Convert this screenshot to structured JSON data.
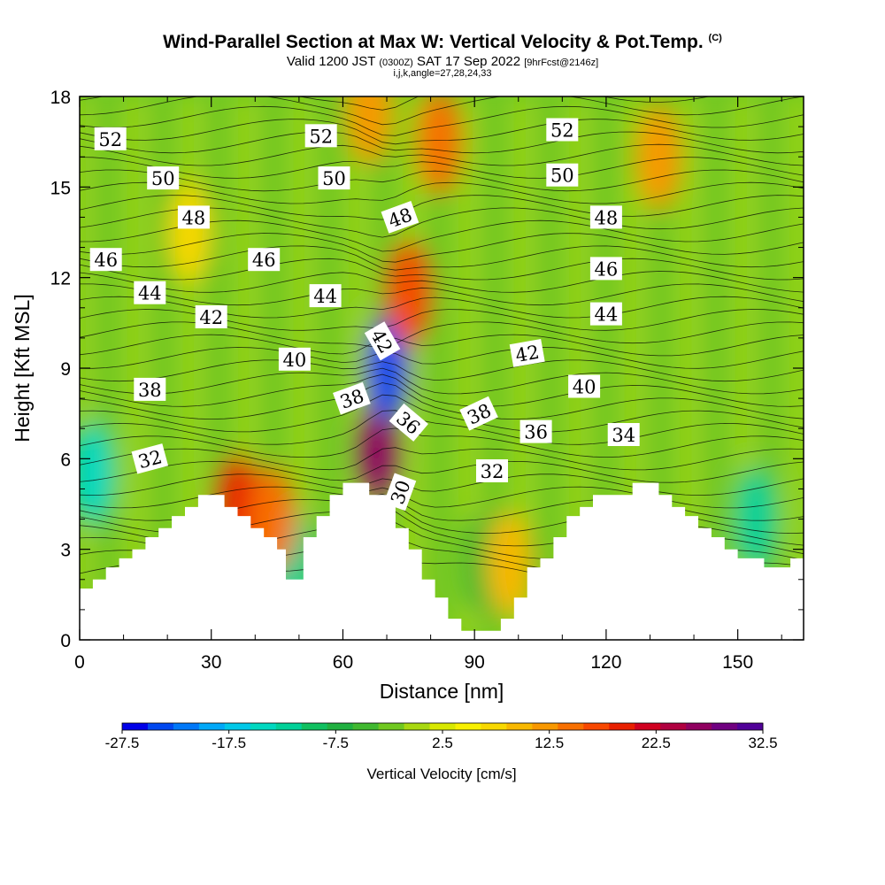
{
  "title": {
    "main": "Wind-Parallel Section at Max W: Vertical Velocity & Pot.Temp.",
    "copyright": "(C)",
    "valid_prefix": "Valid 1200 JST",
    "utc": "(0300Z)",
    "valid_date": "SAT 17 Sep 2022",
    "forecast": "[9hrFcst@2146z]",
    "indices": "i,j,k,angle=27,28,24,33"
  },
  "chart_data": {
    "type": "heatmap",
    "xlabel": "Distance [nm]",
    "ylabel": "Height [Kft MSL]",
    "xlim": [
      0,
      165
    ],
    "ylim": [
      0,
      18
    ],
    "xticks": [
      "0",
      "30",
      "60",
      "90",
      "120",
      "150"
    ],
    "yticks": [
      "0",
      "3",
      "6",
      "9",
      "12",
      "15",
      "18"
    ],
    "colorbar": {
      "title": "Vertical Velocity [cm/s]",
      "tick_labels": [
        "-27.5",
        "-17.5",
        "-7.5",
        "2.5",
        "12.5",
        "22.5",
        "32.5"
      ],
      "colors": [
        "#0000e8",
        "#0048f0",
        "#0078f8",
        "#00a8f8",
        "#00c8e8",
        "#00d8c0",
        "#00d098",
        "#10c060",
        "#20b040",
        "#40b830",
        "#70c820",
        "#a8d810",
        "#d8e800",
        "#f8f000",
        "#f8d800",
        "#f8b800",
        "#f89800",
        "#f87000",
        "#f84800",
        "#e82000",
        "#d00020",
        "#b00040",
        "#900060",
        "#700080",
        "#500098"
      ]
    },
    "theta_contour_labels": [
      {
        "text": "52",
        "x": 7,
        "y": 16.6,
        "rot": 0
      },
      {
        "text": "52",
        "x": 55,
        "y": 16.7,
        "rot": 0
      },
      {
        "text": "52",
        "x": 110,
        "y": 16.9,
        "rot": 0
      },
      {
        "text": "50",
        "x": 19,
        "y": 15.3,
        "rot": 0
      },
      {
        "text": "50",
        "x": 58,
        "y": 15.3,
        "rot": 0
      },
      {
        "text": "50",
        "x": 110,
        "y": 15.4,
        "rot": 0
      },
      {
        "text": "48",
        "x": 26,
        "y": 14.0,
        "rot": 0
      },
      {
        "text": "48",
        "x": 73,
        "y": 14.0,
        "rot": -20
      },
      {
        "text": "48",
        "x": 120,
        "y": 14.0,
        "rot": 0
      },
      {
        "text": "46",
        "x": 6,
        "y": 12.6,
        "rot": 0
      },
      {
        "text": "46",
        "x": 42,
        "y": 12.6,
        "rot": 0
      },
      {
        "text": "46",
        "x": 120,
        "y": 12.3,
        "rot": 0
      },
      {
        "text": "44",
        "x": 16,
        "y": 11.5,
        "rot": 0
      },
      {
        "text": "44",
        "x": 56,
        "y": 11.4,
        "rot": 0
      },
      {
        "text": "44",
        "x": 120,
        "y": 10.8,
        "rot": 0
      },
      {
        "text": "42",
        "x": 30,
        "y": 10.7,
        "rot": 0
      },
      {
        "text": "42",
        "x": 69,
        "y": 9.9,
        "rot": 60
      },
      {
        "text": "42",
        "x": 102,
        "y": 9.5,
        "rot": -10
      },
      {
        "text": "40",
        "x": 49,
        "y": 9.3,
        "rot": 0
      },
      {
        "text": "40",
        "x": 115,
        "y": 8.4,
        "rot": 0
      },
      {
        "text": "38",
        "x": 16,
        "y": 8.3,
        "rot": 0
      },
      {
        "text": "38",
        "x": 62,
        "y": 8.0,
        "rot": -20
      },
      {
        "text": "38",
        "x": 91,
        "y": 7.5,
        "rot": -25
      },
      {
        "text": "36",
        "x": 75,
        "y": 7.2,
        "rot": 40
      },
      {
        "text": "36",
        "x": 104,
        "y": 6.9,
        "rot": 0
      },
      {
        "text": "34",
        "x": 124,
        "y": 6.8,
        "rot": 0
      },
      {
        "text": "32",
        "x": 16,
        "y": 6.0,
        "rot": -15
      },
      {
        "text": "32",
        "x": 94,
        "y": 5.6,
        "rot": 0
      },
      {
        "text": "30",
        "x": 73,
        "y": 4.9,
        "rot": -70
      }
    ],
    "velocity_features": [
      {
        "x": 68,
        "y": 6.2,
        "w": 28
      },
      {
        "x": 70,
        "y": 9.0,
        "w": -25
      },
      {
        "x": 75,
        "y": 11.5,
        "w": 18
      },
      {
        "x": 82,
        "y": 16.5,
        "w": 16
      },
      {
        "x": 66,
        "y": 17.5,
        "w": 14
      },
      {
        "x": 3,
        "y": 5.5,
        "w": -16
      },
      {
        "x": 48,
        "y": 2.6,
        "w": -14
      },
      {
        "x": 92,
        "y": 2.5,
        "w": -5
      },
      {
        "x": 154,
        "y": 4.0,
        "w": -12
      },
      {
        "x": 132,
        "y": 16.0,
        "w": 12
      },
      {
        "x": 36,
        "y": 4.4,
        "w": 20
      },
      {
        "x": 25,
        "y": 13.5,
        "w": 8
      },
      {
        "x": 44,
        "y": 4.0,
        "w": 16
      },
      {
        "x": 98,
        "y": 2.5,
        "w": 10
      }
    ],
    "terrain_top": [
      [
        0,
        1.7
      ],
      [
        3,
        1.7
      ],
      [
        3,
        2.0
      ],
      [
        6,
        2.0
      ],
      [
        6,
        2.4
      ],
      [
        9,
        2.4
      ],
      [
        9,
        2.7
      ],
      [
        12,
        2.7
      ],
      [
        12,
        3.0
      ],
      [
        15,
        3.0
      ],
      [
        15,
        3.4
      ],
      [
        18,
        3.4
      ],
      [
        18,
        3.7
      ],
      [
        21,
        3.7
      ],
      [
        21,
        4.1
      ],
      [
        24,
        4.1
      ],
      [
        24,
        4.4
      ],
      [
        27,
        4.4
      ],
      [
        27,
        4.8
      ],
      [
        33,
        4.8
      ],
      [
        33,
        4.4
      ],
      [
        36,
        4.4
      ],
      [
        36,
        4.1
      ],
      [
        39,
        4.1
      ],
      [
        39,
        3.7
      ],
      [
        42,
        3.7
      ],
      [
        42,
        3.4
      ],
      [
        45,
        3.4
      ],
      [
        45,
        3.0
      ],
      [
        47,
        3.0
      ],
      [
        47,
        2.0
      ],
      [
        51,
        2.0
      ],
      [
        51,
        3.4
      ],
      [
        54,
        3.4
      ],
      [
        54,
        4.1
      ],
      [
        57,
        4.1
      ],
      [
        57,
        4.8
      ],
      [
        60,
        4.8
      ],
      [
        60,
        5.2
      ],
      [
        66,
        5.2
      ],
      [
        66,
        4.8
      ],
      [
        72,
        4.8
      ],
      [
        72,
        3.7
      ],
      [
        75,
        3.7
      ],
      [
        75,
        3.0
      ],
      [
        78,
        3.0
      ],
      [
        78,
        2.0
      ],
      [
        81,
        2.0
      ],
      [
        81,
        1.4
      ],
      [
        84,
        1.4
      ],
      [
        84,
        0.7
      ],
      [
        87,
        0.7
      ],
      [
        87,
        0.3
      ],
      [
        96,
        0.3
      ],
      [
        96,
        0.7
      ],
      [
        99,
        0.7
      ],
      [
        99,
        1.4
      ],
      [
        102,
        1.4
      ],
      [
        102,
        2.4
      ],
      [
        105,
        2.4
      ],
      [
        105,
        2.7
      ],
      [
        108,
        2.7
      ],
      [
        108,
        3.4
      ],
      [
        111,
        3.4
      ],
      [
        111,
        4.1
      ],
      [
        114,
        4.1
      ],
      [
        114,
        4.4
      ],
      [
        117,
        4.4
      ],
      [
        117,
        4.8
      ],
      [
        126,
        4.8
      ],
      [
        126,
        5.2
      ],
      [
        132,
        5.2
      ],
      [
        132,
        4.8
      ],
      [
        135,
        4.8
      ],
      [
        135,
        4.4
      ],
      [
        138,
        4.4
      ],
      [
        138,
        4.1
      ],
      [
        141,
        4.1
      ],
      [
        141,
        3.7
      ],
      [
        144,
        3.7
      ],
      [
        144,
        3.4
      ],
      [
        147,
        3.4
      ],
      [
        147,
        3.0
      ],
      [
        150,
        3.0
      ],
      [
        150,
        2.7
      ],
      [
        156,
        2.7
      ],
      [
        156,
        2.4
      ],
      [
        162,
        2.4
      ],
      [
        162,
        2.7
      ],
      [
        165,
        2.7
      ]
    ]
  }
}
